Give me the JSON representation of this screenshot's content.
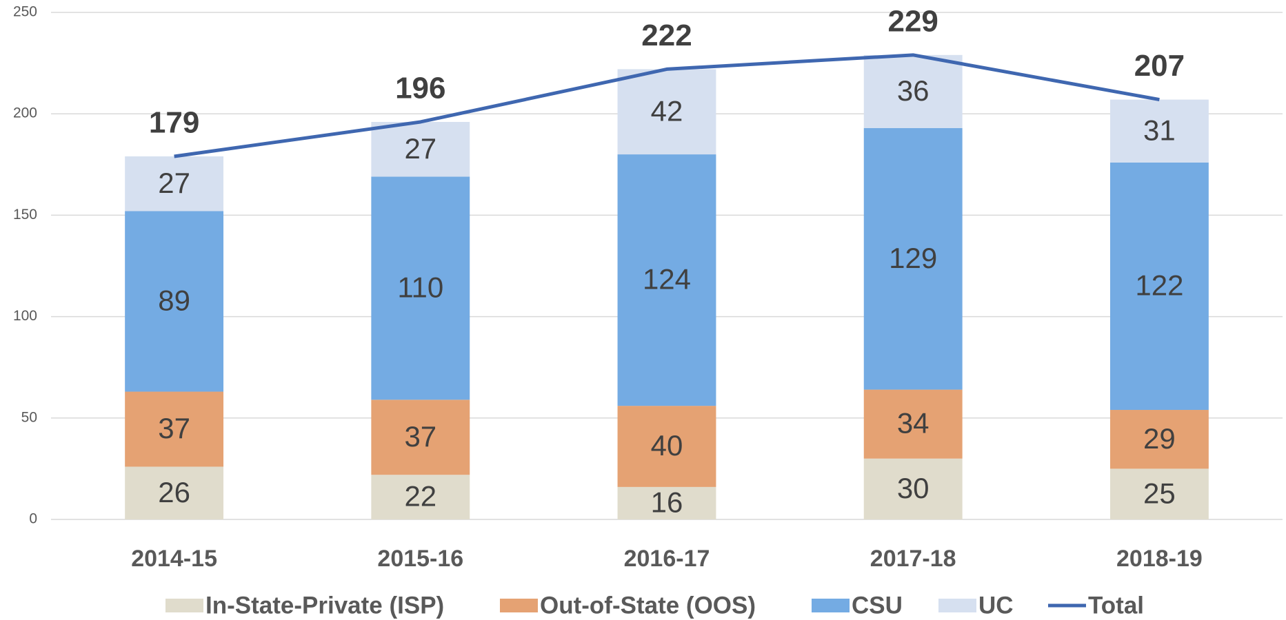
{
  "chart_data": {
    "type": "bar",
    "stacked": true,
    "categories": [
      "2014-15",
      "2015-16",
      "2016-17",
      "2017-18",
      "2018-19"
    ],
    "series": [
      {
        "name": "In-State-Private (ISP)",
        "color": "#e0dccc",
        "values": [
          26,
          22,
          16,
          30,
          25
        ]
      },
      {
        "name": "Out-of-State (OOS)",
        "color": "#e5a273",
        "values": [
          37,
          37,
          40,
          34,
          29
        ]
      },
      {
        "name": "CSU",
        "color": "#74abe3",
        "values": [
          89,
          110,
          124,
          129,
          122
        ]
      },
      {
        "name": "UC",
        "color": "#d6e0f0",
        "values": [
          27,
          27,
          42,
          36,
          31
        ]
      },
      {
        "name": "Total",
        "type": "line",
        "color": "#3f67b0",
        "values": [
          179,
          196,
          222,
          229,
          207
        ]
      }
    ],
    "ylim": [
      0,
      250
    ],
    "yticks": [
      0,
      50,
      100,
      150,
      200,
      250
    ],
    "grid": true,
    "legend": "bottom"
  }
}
